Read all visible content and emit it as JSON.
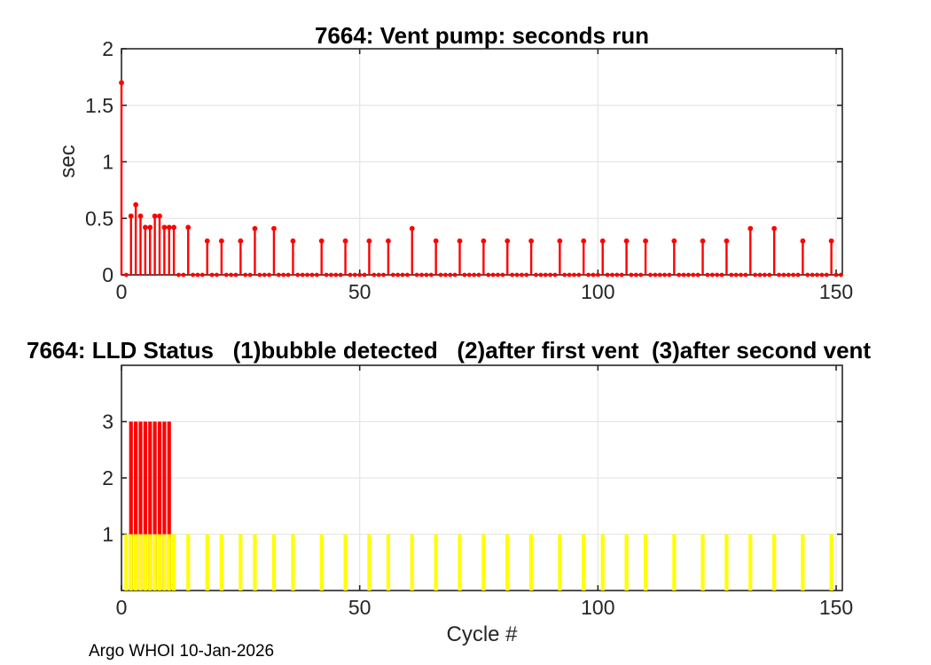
{
  "figure": {
    "footer_text": "Argo WHOI 10-Jan-2026"
  },
  "colors": {
    "axis": "#262626",
    "grid": "#e6e6e6",
    "tick_label": "#262626",
    "title": "#000000",
    "stem_red": "#ff0000",
    "bar_red": "#ff0000",
    "bar_yellow": "#ffff00"
  },
  "chart_data": [
    {
      "type": "stem",
      "title": "7664: Vent pump: seconds run",
      "ylabel": "sec",
      "xlim": [
        0,
        151.3
      ],
      "ylim": [
        0,
        2
      ],
      "xticks": [
        0,
        50,
        100,
        150
      ],
      "xticklabels": [
        "0",
        "50",
        "100",
        "150"
      ],
      "yticks": [
        0,
        0.5,
        1,
        1.5,
        2
      ],
      "yticklabels": [
        "0",
        "0.5",
        "1",
        "1.5",
        "2"
      ],
      "grid": true,
      "color": "#ff0000",
      "max_cycle": 151,
      "seconds_by_cycle": {
        "0": 1.7,
        "2": 0.52,
        "3": 0.62,
        "4": 0.52,
        "5": 0.42,
        "6": 0.42,
        "7": 0.52,
        "8": 0.52,
        "9": 0.42,
        "10": 0.42,
        "11": 0.42,
        "14": 0.42,
        "18": 0.3,
        "21": 0.3,
        "25": 0.3,
        "28": 0.41,
        "32": 0.41,
        "36": 0.3,
        "42": 0.3,
        "47": 0.3,
        "52": 0.3,
        "56": 0.3,
        "61": 0.41,
        "66": 0.3,
        "71": 0.3,
        "76": 0.3,
        "81": 0.3,
        "86": 0.3,
        "92": 0.3,
        "97": 0.3,
        "101": 0.3,
        "106": 0.3,
        "110": 0.3,
        "116": 0.3,
        "122": 0.3,
        "127": 0.3,
        "132": 0.41,
        "137": 0.41,
        "143": 0.3,
        "149": 0.3
      }
    },
    {
      "type": "bar",
      "title": "7664: LLD Status   (1)bubble detected   (2)after first vent  (3)after second vent",
      "xlabel": "Cycle #",
      "xlim": [
        0,
        151.3
      ],
      "ylim": [
        0,
        4
      ],
      "xticks": [
        0,
        50,
        100,
        150
      ],
      "xticklabels": [
        "0",
        "50",
        "100",
        "150"
      ],
      "yticks": [
        1,
        2,
        3
      ],
      "yticklabels": [
        "1",
        "2",
        "3"
      ],
      "grid": true,
      "series": [
        {
          "name": "lld-status-3-after-second-vent",
          "color": "#ff0000",
          "value": 3,
          "cycles": [
            2,
            3,
            4,
            5,
            6,
            7,
            8,
            9,
            10
          ]
        },
        {
          "name": "lld-status-1-bubble-detected",
          "color": "#ffff00",
          "value": 1,
          "cycles": [
            1,
            2,
            3,
            4,
            5,
            6,
            7,
            8,
            9,
            10,
            11,
            14,
            18,
            21,
            25,
            28,
            32,
            36,
            42,
            47,
            52,
            56,
            61,
            66,
            71,
            76,
            81,
            86,
            92,
            97,
            101,
            106,
            110,
            116,
            122,
            127,
            132,
            137,
            143,
            149
          ]
        }
      ]
    }
  ]
}
